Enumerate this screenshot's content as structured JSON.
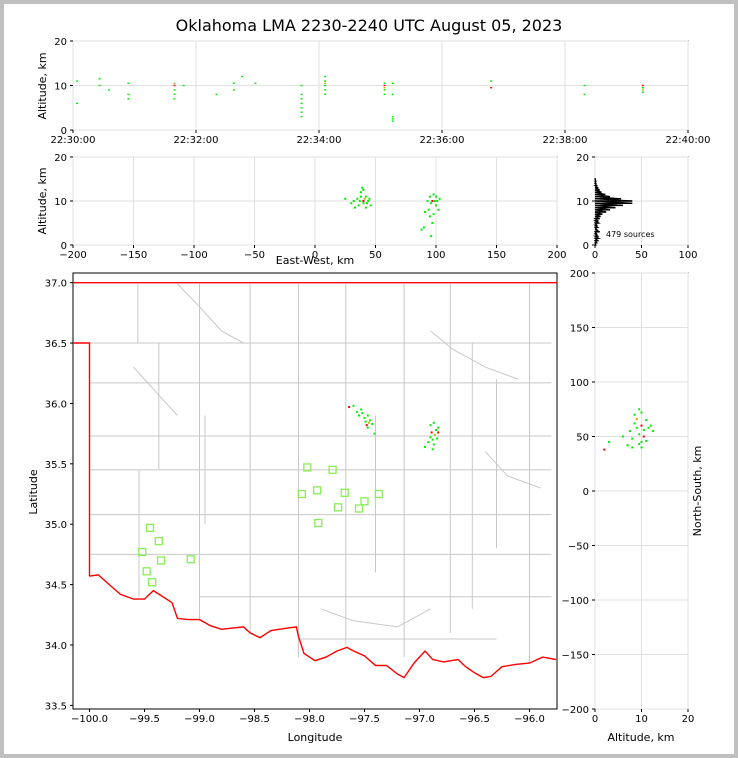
{
  "title": "Oklahoma LMA 2230-2240 UTC August 05, 2023",
  "colors": {
    "state_border": "#ff0000",
    "county": "#c8c8c8",
    "grid": "#e0e0e0",
    "src_green": "#00ee00",
    "src_red": "#ff0000",
    "src_yellow": "#c8b400",
    "station": "#88ee55",
    "hist": "#000000"
  },
  "chart_data": [
    {
      "type": "scatter",
      "name": "time-height",
      "ylabel": "Altitude, km",
      "x_ticks": [
        "22:30:00",
        "22:32:00",
        "22:34:00",
        "22:36:00",
        "22:38:00",
        "22:40:00"
      ],
      "y_ticks": [
        "0",
        "10",
        "20"
      ],
      "xlim": [
        "22:30:00",
        "22:40:00"
      ],
      "ylim": [
        0,
        20
      ],
      "grid": true,
      "points": [
        [
          "22:30:04",
          11,
          "g"
        ],
        [
          "22:30:04",
          6,
          "g"
        ],
        [
          "22:30:26",
          11.5,
          "g"
        ],
        [
          "22:30:26",
          10,
          "g"
        ],
        [
          "22:30:35",
          9,
          "g"
        ],
        [
          "22:30:54",
          10.5,
          "g"
        ],
        [
          "22:30:54",
          7,
          "g"
        ],
        [
          "22:30:54",
          8,
          "g"
        ],
        [
          "22:31:39",
          10,
          "r"
        ],
        [
          "22:31:39",
          9,
          "g"
        ],
        [
          "22:31:39",
          8,
          "g"
        ],
        [
          "22:31:39",
          7,
          "g"
        ],
        [
          "22:31:39",
          10.5,
          "y"
        ],
        [
          "22:31:48",
          10,
          "g"
        ],
        [
          "22:32:20",
          8,
          "g"
        ],
        [
          "22:32:37",
          10.5,
          "g"
        ],
        [
          "22:32:37",
          9,
          "g"
        ],
        [
          "22:32:45",
          12,
          "g"
        ],
        [
          "22:32:58",
          10.5,
          "g"
        ],
        [
          "22:33:43",
          10,
          "g"
        ],
        [
          "22:33:43",
          8,
          "g"
        ],
        [
          "22:33:43",
          7,
          "g"
        ],
        [
          "22:33:43",
          6,
          "g"
        ],
        [
          "22:33:43",
          5,
          "g"
        ],
        [
          "22:33:43",
          3,
          "g"
        ],
        [
          "22:33:43",
          4,
          "g"
        ],
        [
          "22:34:06",
          12,
          "g"
        ],
        [
          "22:34:06",
          11,
          "g"
        ],
        [
          "22:34:06",
          10,
          "g"
        ],
        [
          "22:34:06",
          9,
          "g"
        ],
        [
          "22:34:06",
          8,
          "g"
        ],
        [
          "22:34:06",
          10.5,
          "y"
        ],
        [
          "22:35:04",
          10.5,
          "g"
        ],
        [
          "22:35:04",
          10,
          "r"
        ],
        [
          "22:35:04",
          9,
          "g"
        ],
        [
          "22:35:04",
          8,
          "g"
        ],
        [
          "22:35:04",
          9.5,
          "y"
        ],
        [
          "22:35:12",
          10.5,
          "g"
        ],
        [
          "22:35:12",
          8,
          "g"
        ],
        [
          "22:35:12",
          2,
          "g"
        ],
        [
          "22:35:12",
          3,
          "g"
        ],
        [
          "22:35:12",
          2.5,
          "g"
        ],
        [
          "22:36:48",
          11,
          "g"
        ],
        [
          "22:36:48",
          9.5,
          "r"
        ],
        [
          "22:38:19",
          10,
          "g"
        ],
        [
          "22:38:19",
          8,
          "g"
        ],
        [
          "22:39:16",
          10,
          "r"
        ],
        [
          "22:39:16",
          9,
          "y"
        ],
        [
          "22:39:16",
          8.5,
          "g"
        ],
        [
          "22:39:16",
          9.5,
          "g"
        ]
      ]
    },
    {
      "type": "scatter",
      "name": "east-west-altitude",
      "xlabel": "East-West, km",
      "ylabel": "Altitude, km",
      "x_ticks": [
        "−200",
        "−150",
        "−100",
        "−50",
        "0",
        "50",
        "100",
        "150",
        "200"
      ],
      "y_ticks": [
        "0",
        "10",
        "20"
      ],
      "xlim": [
        -200,
        200
      ],
      "ylim": [
        0,
        20
      ],
      "grid": true,
      "points": [
        [
          25,
          10.5,
          "g"
        ],
        [
          30,
          9.5,
          "g"
        ],
        [
          32,
          10,
          "g"
        ],
        [
          33,
          8.5,
          "g"
        ],
        [
          35,
          10.5,
          "g"
        ],
        [
          36,
          9,
          "g"
        ],
        [
          37,
          10,
          "g"
        ],
        [
          38,
          11,
          "g"
        ],
        [
          38,
          12,
          "g"
        ],
        [
          39,
          13,
          "g"
        ],
        [
          40,
          9.5,
          "g"
        ],
        [
          40,
          10,
          "r"
        ],
        [
          40,
          12.5,
          "g"
        ],
        [
          41,
          10.5,
          "y"
        ],
        [
          42,
          11,
          "g"
        ],
        [
          42,
          8.5,
          "g"
        ],
        [
          43,
          9.5,
          "g"
        ],
        [
          44,
          10,
          "g"
        ],
        [
          45,
          10.5,
          "g"
        ],
        [
          46,
          9,
          "g"
        ],
        [
          88,
          3.5,
          "g"
        ],
        [
          90,
          4,
          "g"
        ],
        [
          91,
          7.5,
          "g"
        ],
        [
          93,
          10,
          "g"
        ],
        [
          94,
          8,
          "g"
        ],
        [
          95,
          6.5,
          "g"
        ],
        [
          95,
          11,
          "g"
        ],
        [
          96,
          9.5,
          "g"
        ],
        [
          96,
          2,
          "g"
        ],
        [
          97,
          10,
          "r"
        ],
        [
          97,
          5,
          "g"
        ],
        [
          98,
          11.5,
          "g"
        ],
        [
          98,
          7,
          "g"
        ],
        [
          99,
          10,
          "g"
        ],
        [
          100,
          9,
          "g"
        ],
        [
          100,
          11,
          "g"
        ],
        [
          101,
          10,
          "g"
        ],
        [
          102,
          8,
          "g"
        ],
        [
          103,
          10.5,
          "g"
        ]
      ]
    },
    {
      "type": "bar",
      "name": "altitude-histogram",
      "x_ticks": [
        "0",
        "50",
        "100"
      ],
      "y_ticks": [
        "0",
        "10",
        "20"
      ],
      "xlim": [
        0,
        100
      ],
      "ylim": [
        0,
        20
      ],
      "annotation": "479 sources",
      "bins": [
        [
          0,
          1
        ],
        [
          0.5,
          2
        ],
        [
          1,
          3
        ],
        [
          1.5,
          4
        ],
        [
          2,
          3
        ],
        [
          2.5,
          2
        ],
        [
          3,
          5
        ],
        [
          3.5,
          2
        ],
        [
          4,
          3
        ],
        [
          4.5,
          2
        ],
        [
          5,
          4
        ],
        [
          5.5,
          3
        ],
        [
          6,
          5
        ],
        [
          6.5,
          6
        ],
        [
          7,
          8
        ],
        [
          7.5,
          12
        ],
        [
          8,
          16
        ],
        [
          8.5,
          22
        ],
        [
          9,
          30
        ],
        [
          9.5,
          40
        ],
        [
          10,
          40
        ],
        [
          10.5,
          28
        ],
        [
          11,
          16
        ],
        [
          11.5,
          11
        ],
        [
          12,
          7
        ],
        [
          12.5,
          5
        ],
        [
          13,
          3
        ],
        [
          13.5,
          2
        ],
        [
          14,
          1
        ],
        [
          14.5,
          1
        ],
        [
          15,
          1
        ]
      ]
    },
    {
      "type": "scatter",
      "name": "plan-view-map",
      "xlabel": "Longitude",
      "ylabel": "Latitude",
      "x_ticks": [
        "−100.0",
        "−99.5",
        "−99.0",
        "−98.5",
        "−98.0",
        "−97.5",
        "−97.0",
        "−96.5",
        "−96.0"
      ],
      "y_ticks": [
        "33.5",
        "34.0",
        "34.5",
        "35.0",
        "35.5",
        "36.0",
        "36.5",
        "37.0"
      ],
      "xlim": [
        -100.15,
        -95.75
      ],
      "ylim": [
        33.47,
        37.08
      ],
      "stations": [
        [
          -99.52,
          34.77
        ],
        [
          -99.45,
          34.97
        ],
        [
          -99.37,
          34.86
        ],
        [
          -99.48,
          34.61
        ],
        [
          -99.43,
          34.52
        ],
        [
          -99.35,
          34.7
        ],
        [
          -99.08,
          34.71
        ],
        [
          -98.02,
          35.47
        ],
        [
          -98.07,
          35.25
        ],
        [
          -97.93,
          35.28
        ],
        [
          -97.92,
          35.01
        ],
        [
          -97.79,
          35.45
        ],
        [
          -97.74,
          35.14
        ],
        [
          -97.68,
          35.26
        ],
        [
          -97.55,
          35.13
        ],
        [
          -97.5,
          35.19
        ],
        [
          -97.37,
          35.25
        ]
      ],
      "sources": [
        [
          -97.64,
          35.97,
          "r"
        ],
        [
          -97.6,
          35.98,
          "g"
        ],
        [
          -97.57,
          35.93,
          "g"
        ],
        [
          -97.55,
          35.9,
          "g"
        ],
        [
          -97.52,
          35.92,
          "g"
        ],
        [
          -97.5,
          35.88,
          "g"
        ],
        [
          -97.49,
          35.85,
          "g"
        ],
        [
          -97.48,
          35.82,
          "r"
        ],
        [
          -97.47,
          35.8,
          "g"
        ],
        [
          -97.46,
          35.84,
          "y"
        ],
        [
          -97.45,
          35.86,
          "g"
        ],
        [
          -97.43,
          35.83,
          "g"
        ],
        [
          -97.41,
          35.75,
          "g"
        ],
        [
          -97.53,
          35.95,
          "g"
        ],
        [
          -97.47,
          35.9,
          "g"
        ],
        [
          -96.95,
          35.64,
          "g"
        ],
        [
          -96.92,
          35.68,
          "g"
        ],
        [
          -96.9,
          35.72,
          "g"
        ],
        [
          -96.9,
          35.82,
          "g"
        ],
        [
          -96.89,
          35.76,
          "r"
        ],
        [
          -96.88,
          35.7,
          "g"
        ],
        [
          -96.87,
          35.66,
          "g"
        ],
        [
          -96.86,
          35.74,
          "y"
        ],
        [
          -96.85,
          35.78,
          "g"
        ],
        [
          -96.84,
          35.71,
          "g"
        ],
        [
          -96.83,
          35.76,
          "r"
        ],
        [
          -96.83,
          35.8,
          "g"
        ],
        [
          -96.88,
          35.62,
          "g"
        ],
        [
          -96.87,
          35.84,
          "g"
        ]
      ]
    },
    {
      "type": "scatter",
      "name": "altitude-north-south",
      "xlabel": "Altitude, km",
      "ylabel": "North-South, km",
      "x_ticks": [
        "0",
        "10",
        "20"
      ],
      "y_ticks": [
        "−200",
        "−150",
        "−100",
        "−50",
        "0",
        "50",
        "100",
        "150",
        "200"
      ],
      "xlim": [
        0,
        20
      ],
      "ylim": [
        -200,
        200
      ],
      "points": [
        [
          2,
          38,
          "r"
        ],
        [
          3,
          45,
          "g"
        ],
        [
          6,
          50,
          "g"
        ],
        [
          7,
          42,
          "g"
        ],
        [
          7.5,
          55,
          "g"
        ],
        [
          8,
          48,
          "g"
        ],
        [
          8.5,
          62,
          "g"
        ],
        [
          8.5,
          70,
          "g"
        ],
        [
          9,
          58,
          "g"
        ],
        [
          9,
          66,
          "y"
        ],
        [
          9.5,
          75,
          "g"
        ],
        [
          9.5,
          52,
          "g"
        ],
        [
          10,
          45,
          "g"
        ],
        [
          10,
          60,
          "r"
        ],
        [
          10,
          72,
          "g"
        ],
        [
          10,
          40,
          "g"
        ],
        [
          10.5,
          56,
          "g"
        ],
        [
          10.5,
          50,
          "r"
        ],
        [
          11,
          65,
          "g"
        ],
        [
          11,
          46,
          "g"
        ],
        [
          11.5,
          58,
          "g"
        ],
        [
          12,
          60,
          "g"
        ],
        [
          12.5,
          55,
          "g"
        ],
        [
          9.5,
          43,
          "g"
        ],
        [
          8,
          40,
          "g"
        ]
      ]
    }
  ]
}
